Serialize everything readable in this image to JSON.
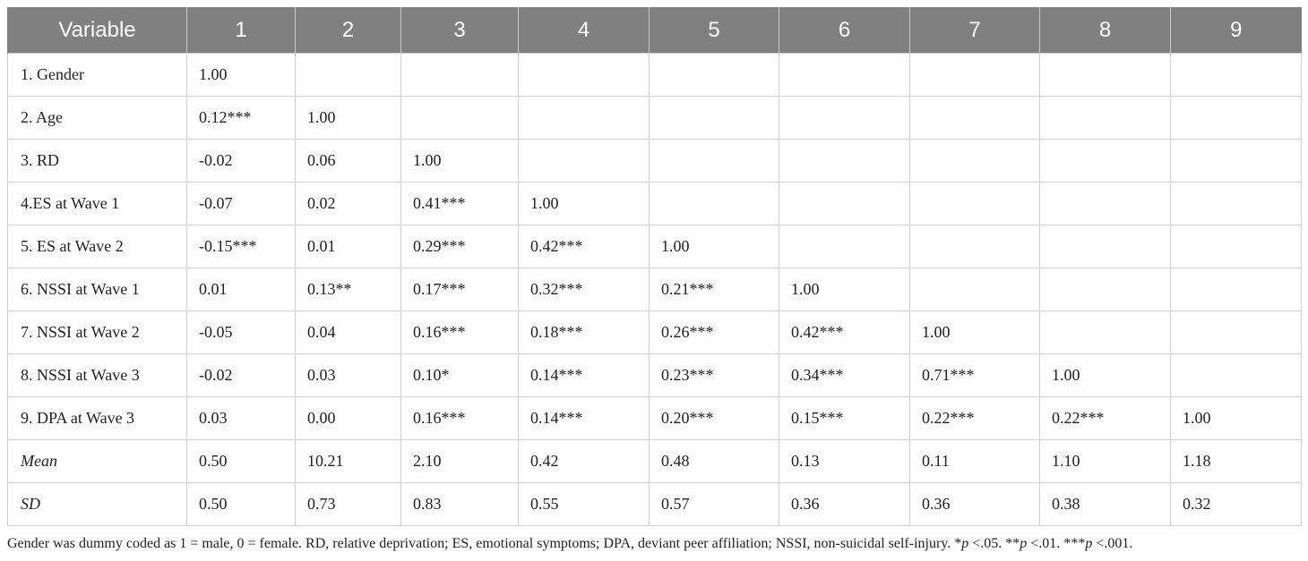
{
  "table": {
    "headers": [
      "Variable",
      "1",
      "2",
      "3",
      "4",
      "5",
      "6",
      "7",
      "8",
      "9"
    ],
    "rows": [
      {
        "label": "1. Gender",
        "italic": false,
        "cells": [
          "1.00",
          "",
          "",
          "",
          "",
          "",
          "",
          "",
          ""
        ]
      },
      {
        "label": "2. Age",
        "italic": false,
        "cells": [
          "0.12***",
          "1.00",
          "",
          "",
          "",
          "",
          "",
          "",
          ""
        ]
      },
      {
        "label": "3. RD",
        "italic": false,
        "cells": [
          "-0.02",
          "0.06",
          "1.00",
          "",
          "",
          "",
          "",
          "",
          ""
        ]
      },
      {
        "label": "4.ES at Wave 1",
        "italic": false,
        "cells": [
          "-0.07",
          "0.02",
          "0.41***",
          "1.00",
          "",
          "",
          "",
          "",
          ""
        ]
      },
      {
        "label": "5. ES at Wave 2",
        "italic": false,
        "cells": [
          "-0.15***",
          "0.01",
          "0.29***",
          "0.42***",
          "1.00",
          "",
          "",
          "",
          ""
        ]
      },
      {
        "label": "6. NSSI at Wave 1",
        "italic": false,
        "cells": [
          "0.01",
          "0.13**",
          "0.17***",
          "0.32***",
          "0.21***",
          "1.00",
          "",
          "",
          ""
        ]
      },
      {
        "label": "7. NSSI at Wave 2",
        "italic": false,
        "cells": [
          "-0.05",
          "0.04",
          "0.16***",
          "0.18***",
          "0.26***",
          "0.42***",
          "1.00",
          "",
          ""
        ]
      },
      {
        "label": "8. NSSI at Wave 3",
        "italic": false,
        "cells": [
          "-0.02",
          "0.03",
          "0.10*",
          "0.14***",
          "0.23***",
          "0.34***",
          "0.71***",
          "1.00",
          ""
        ]
      },
      {
        "label": "9. DPA at Wave 3",
        "italic": false,
        "cells": [
          "0.03",
          "0.00",
          "0.16***",
          "0.14***",
          "0.20***",
          "0.15***",
          "0.22***",
          "0.22***",
          "1.00"
        ]
      },
      {
        "label": "Mean",
        "italic": true,
        "cells": [
          "0.50",
          "10.21",
          "2.10",
          "0.42",
          "0.48",
          "0.13",
          "0.11",
          "1.10",
          "1.18"
        ]
      },
      {
        "label": "SD",
        "italic": true,
        "cells": [
          "0.50",
          "0.73",
          "0.83",
          "0.55",
          "0.57",
          "0.36",
          "0.36",
          "0.38",
          "0.32"
        ]
      }
    ]
  },
  "note": {
    "main": "Gender was dummy coded as 1 = male, 0 = female. RD, relative deprivation; ES, emotional symptoms; DPA, deviant peer affiliation; NSSI, non-suicidal self-injury.",
    "sig1_stars": "*",
    "sig1_p": "p",
    "sig1_rest": " <.05. ",
    "sig2_stars": "**",
    "sig2_p": "p",
    "sig2_rest": " <.01. ",
    "sig3_stars": "***",
    "sig3_p": "p",
    "sig3_rest": " <.001."
  }
}
